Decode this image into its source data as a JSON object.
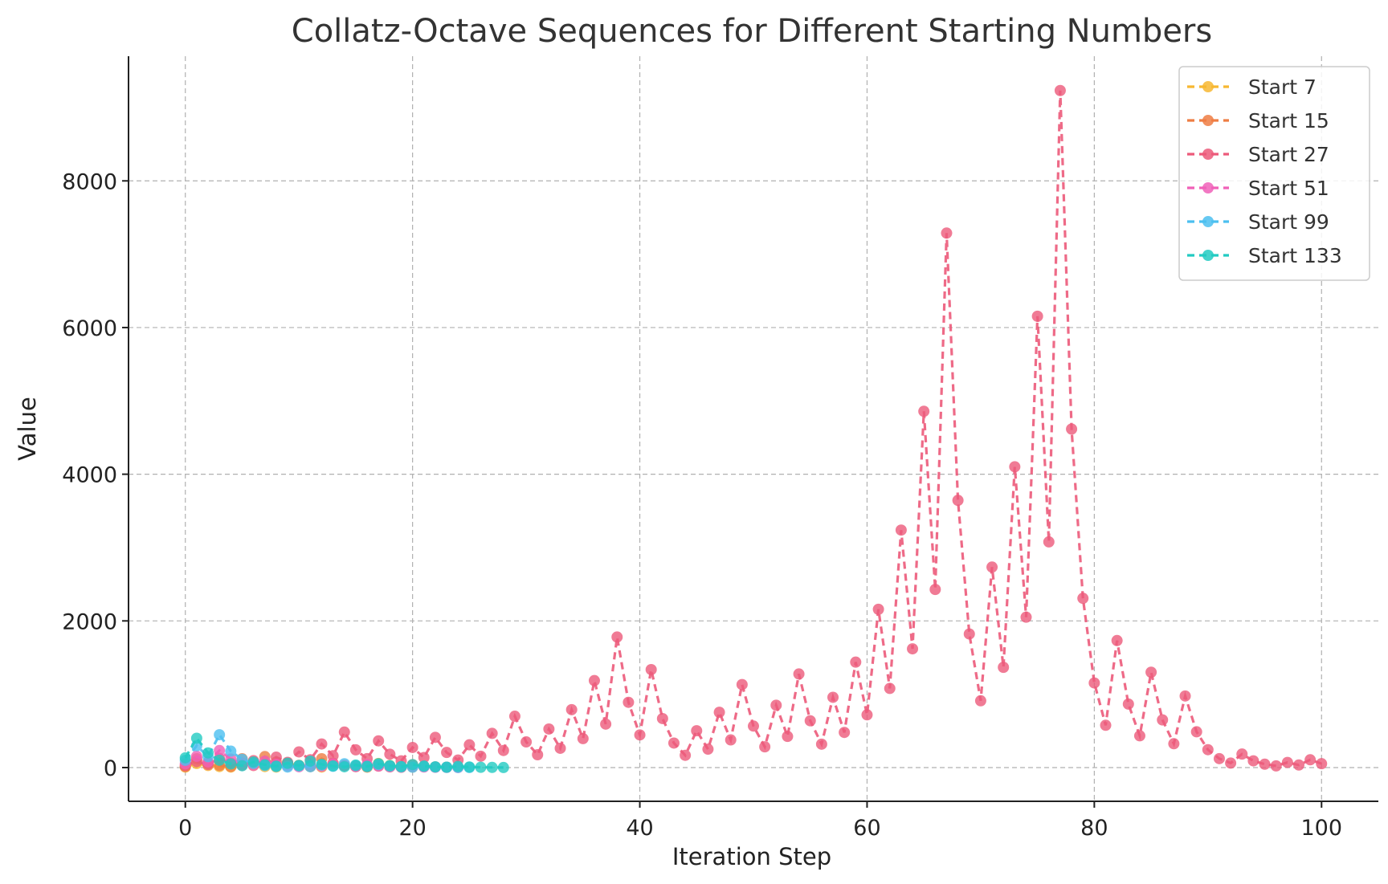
{
  "chart_data": {
    "type": "line",
    "title": "Collatz-Octave Sequences for Different Starting Numbers",
    "xlabel": "Iteration Step",
    "ylabel": "Value",
    "xlim": [
      -5,
      105
    ],
    "ylim": [
      -460,
      9700
    ],
    "xticks": [
      0,
      20,
      40,
      60,
      80,
      100
    ],
    "yticks": [
      0,
      2000,
      4000,
      6000,
      8000
    ],
    "grid": true,
    "legend_position": "top-right",
    "line_style": "dashed",
    "marker": "circle",
    "series": [
      {
        "name": "Start 7",
        "color": "#f7b731",
        "values": [
          7,
          56,
          28,
          14,
          7,
          56,
          28,
          14,
          7,
          56,
          28,
          14,
          7,
          56,
          28,
          14,
          7,
          56,
          28,
          14,
          7
        ]
      },
      {
        "name": "Start 15",
        "color": "#ee7d43",
        "values": [
          15,
          120,
          60,
          30,
          15,
          120,
          60,
          150,
          75,
          60,
          30,
          15,
          120,
          60,
          30,
          15,
          8,
          20,
          10,
          5,
          40,
          20,
          10,
          5
        ]
      },
      {
        "name": "Start 27",
        "color": "#ec5a7a",
        "values": [
          27,
          82,
          41,
          124,
          62,
          31,
          94,
          47,
          142,
          71,
          214,
          107,
          322,
          161,
          484,
          242,
          121,
          364,
          182,
          91,
          274,
          137,
          412,
          206,
          103,
          310,
          155,
          466,
          233,
          700,
          350,
          175,
          526,
          263,
          790,
          395,
          1186,
          593,
          1780,
          890,
          445,
          1336,
          668,
          334,
          167,
          502,
          251,
          754,
          377,
          1132,
          566,
          283,
          850,
          425,
          1276,
          638,
          319,
          958,
          479,
          1438,
          719,
          2158,
          1079,
          3238,
          1619,
          4858,
          2429,
          7288,
          3644,
          1822,
          911,
          2734,
          1367,
          4102,
          2051,
          6154,
          3077,
          9232,
          4616,
          2308,
          1154,
          577,
          1732,
          866,
          433,
          1300,
          650,
          325,
          976,
          488,
          244,
          122,
          61,
          184,
          92,
          46,
          23,
          70,
          35,
          106,
          53
        ]
      },
      {
        "name": "Start 51",
        "color": "#f060b8",
        "values": [
          51,
          154,
          77,
          232,
          116,
          58,
          29,
          88,
          44,
          22,
          11,
          34,
          17,
          52,
          26,
          13,
          40,
          20,
          10,
          5,
          16,
          8,
          4,
          2,
          1
        ]
      },
      {
        "name": "Start 99",
        "color": "#4cbff0",
        "values": [
          99,
          298,
          149,
          448,
          224,
          112,
          56,
          28,
          14,
          7,
          22,
          11,
          34,
          17,
          52,
          26,
          13,
          40,
          20,
          10,
          5,
          16,
          8,
          4,
          2,
          1
        ]
      },
      {
        "name": "Start 133",
        "color": "#22cbc2",
        "values": [
          133,
          400,
          200,
          100,
          50,
          25,
          76,
          38,
          19,
          58,
          29,
          88,
          44,
          22,
          11,
          34,
          17,
          52,
          26,
          13,
          40,
          20,
          10,
          5,
          16,
          8,
          4,
          2,
          1
        ]
      }
    ]
  }
}
